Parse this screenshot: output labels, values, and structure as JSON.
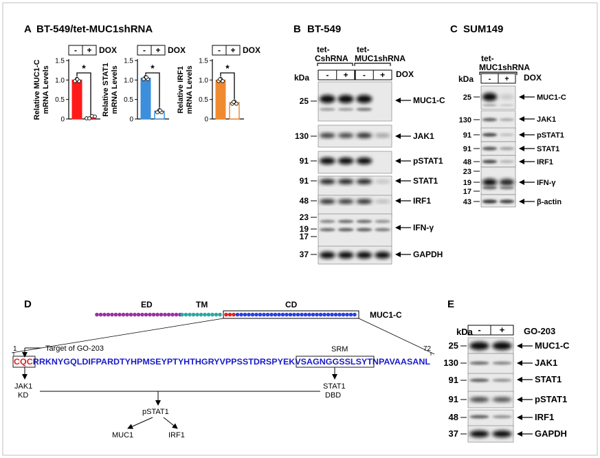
{
  "panelA": {
    "letter": "A",
    "title": "BT-549/tet-MUC1shRNA",
    "dox_minus": "-",
    "dox_plus": "+",
    "dox_label": "DOX",
    "sig": "*",
    "yticks": [
      "0",
      "0.5",
      "1.0",
      "1.5"
    ],
    "colors": {
      "muc1c": "#ff1a1a",
      "stat1": "#3b8fdd",
      "irf1": "#f08a30"
    },
    "charts": [
      {
        "ylabel1": "Relative MUC1-C",
        "ylabel2": "mRNA Levels",
        "chart_data": {
          "type": "bar",
          "categories": [
            "-",
            "+"
          ],
          "values": [
            1.0,
            0.01
          ],
          "ylim": [
            0,
            1.5
          ],
          "ylabel": "Relative MUC1-C mRNA Levels"
        }
      },
      {
        "ylabel1": "Relative STAT1",
        "ylabel2": "mRNA Levels",
        "chart_data": {
          "type": "bar",
          "categories": [
            "-",
            "+"
          ],
          "values": [
            1.05,
            0.2
          ],
          "ylim": [
            0,
            1.5
          ],
          "ylabel": "Relative STAT1 mRNA Levels"
        }
      },
      {
        "ylabel1": "Relative IRF1",
        "ylabel2": "mRNA Levels",
        "chart_data": {
          "type": "bar",
          "categories": [
            "-",
            "+"
          ],
          "values": [
            1.0,
            0.42
          ],
          "ylim": [
            0,
            1.5
          ],
          "ylabel": "Relative IRF1 mRNA Levels"
        }
      }
    ]
  },
  "panelB": {
    "letter": "B",
    "title": "BT-549",
    "group1a": "tet-",
    "group1b": "CshRNA",
    "group2a": "tet-",
    "group2b": "MUC1shRNA",
    "kda": "kDa",
    "dox_label": "DOX",
    "lanes": [
      "-",
      "+",
      "-",
      "+"
    ],
    "blots": [
      {
        "markers": [
          "25"
        ],
        "label": "MUC1-C"
      },
      {
        "markers": [
          "130"
        ],
        "label": "JAK1"
      },
      {
        "markers": [
          "91"
        ],
        "label": "pSTAT1"
      },
      {
        "markers": [
          "91"
        ],
        "label": "STAT1"
      },
      {
        "markers": [
          "48"
        ],
        "label": "IRF1"
      },
      {
        "markers": [
          "23",
          "19",
          "17"
        ],
        "label": "IFN-γ"
      },
      {
        "markers": [
          "37"
        ],
        "label": "GAPDH"
      }
    ]
  },
  "panelC": {
    "letter": "C",
    "title": "SUM149",
    "groupa": "tet-",
    "groupb": "MUC1shRNA",
    "kda": "kDa",
    "dox_label": "DOX",
    "lanes": [
      "-",
      "+"
    ],
    "blots": [
      {
        "markers": [
          "25"
        ],
        "label": "MUC1-C"
      },
      {
        "markers": [
          "130"
        ],
        "label": "JAK1"
      },
      {
        "markers": [
          "91"
        ],
        "label": "pSTAT1"
      },
      {
        "markers": [
          "91"
        ],
        "label": "STAT1"
      },
      {
        "markers": [
          "48"
        ],
        "label": "IRF1"
      },
      {
        "markers": [
          "23",
          "19",
          "17"
        ],
        "label": "IFN-γ"
      },
      {
        "markers": [
          "43"
        ],
        "label": "β-actin"
      }
    ]
  },
  "panelD": {
    "letter": "D",
    "ed": "ED",
    "tm": "TM",
    "cd": "CD",
    "muc1c": "MUC1-C",
    "pos_start": "1",
    "pos_end": "72",
    "target": "Target of GO-203",
    "srm": "SRM",
    "seq_cqc": "CQC",
    "seq_1": "RRKNYGQLDIFPARDTYHPMSEYPTYHTHGRYVPPSSTDRSPYEKV",
    "seq_srm": "SAGNGGSSLS",
    "seq_2": "YTNPAVAASANL",
    "jak1": "JAK1",
    "kd": "KD",
    "stat1": "STAT1",
    "dbd": "DBD",
    "pstat1": "pSTAT1",
    "out1": "MUC1",
    "out2": "IRF1",
    "colors": {
      "ed": "#9b2fa0",
      "tm": "#2aa8a0",
      "cd": "#2a3fe0",
      "cqc": "#e02020",
      "seq": "#1a1acc"
    }
  },
  "panelE": {
    "letter": "E",
    "kda": "kDa",
    "lanes": [
      "-",
      "+"
    ],
    "treatment": "GO-203",
    "blots": [
      {
        "markers": [
          "25"
        ],
        "label": "MUC1-C"
      },
      {
        "markers": [
          "130"
        ],
        "label": "JAK1"
      },
      {
        "markers": [
          "91"
        ],
        "label": "STAT1"
      },
      {
        "markers": [
          "91"
        ],
        "label": "pSTAT1"
      },
      {
        "markers": [
          "48"
        ],
        "label": "IRF1"
      },
      {
        "markers": [
          "37"
        ],
        "label": "GAPDH"
      }
    ]
  }
}
